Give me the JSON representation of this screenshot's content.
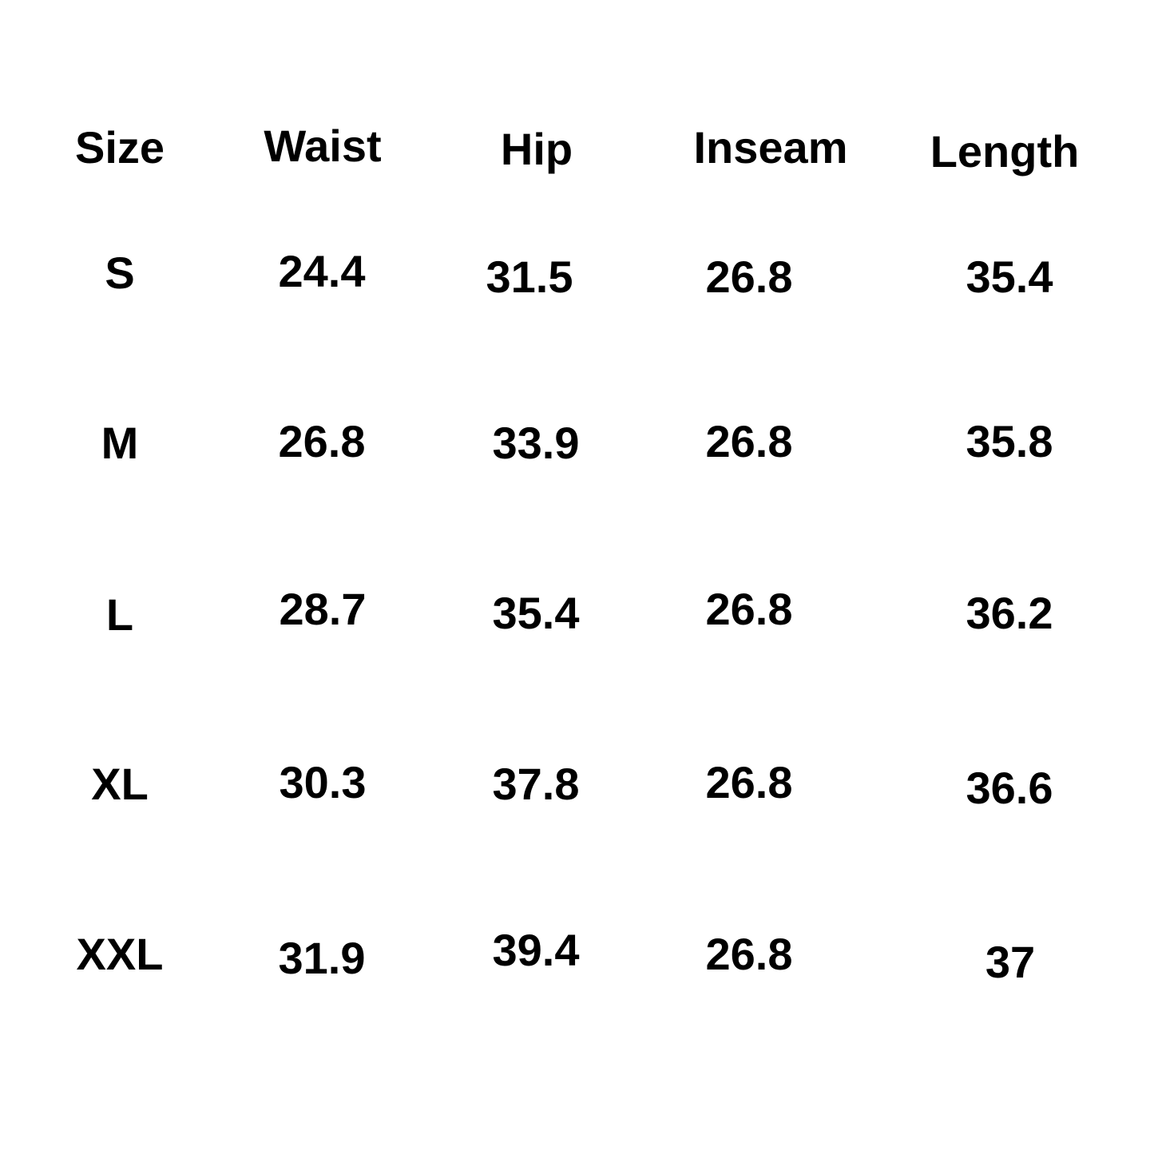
{
  "table": {
    "headers": [
      "Size",
      "Waist",
      "Hip",
      "Inseam",
      "Length"
    ],
    "rows": [
      [
        "S",
        "24.4",
        "31.5",
        "26.8",
        "35.4"
      ],
      [
        "M",
        "26.8",
        "33.9",
        "26.8",
        "35.8"
      ],
      [
        "L",
        "28.7",
        "35.4",
        "26.8",
        "36.2"
      ],
      [
        "XL",
        "30.3",
        "37.8",
        "26.8",
        "36.6"
      ],
      [
        "XXL",
        "31.9",
        "39.4",
        "26.8",
        "37"
      ]
    ]
  },
  "colors": {
    "text": "#000000",
    "background": "#ffffff"
  }
}
